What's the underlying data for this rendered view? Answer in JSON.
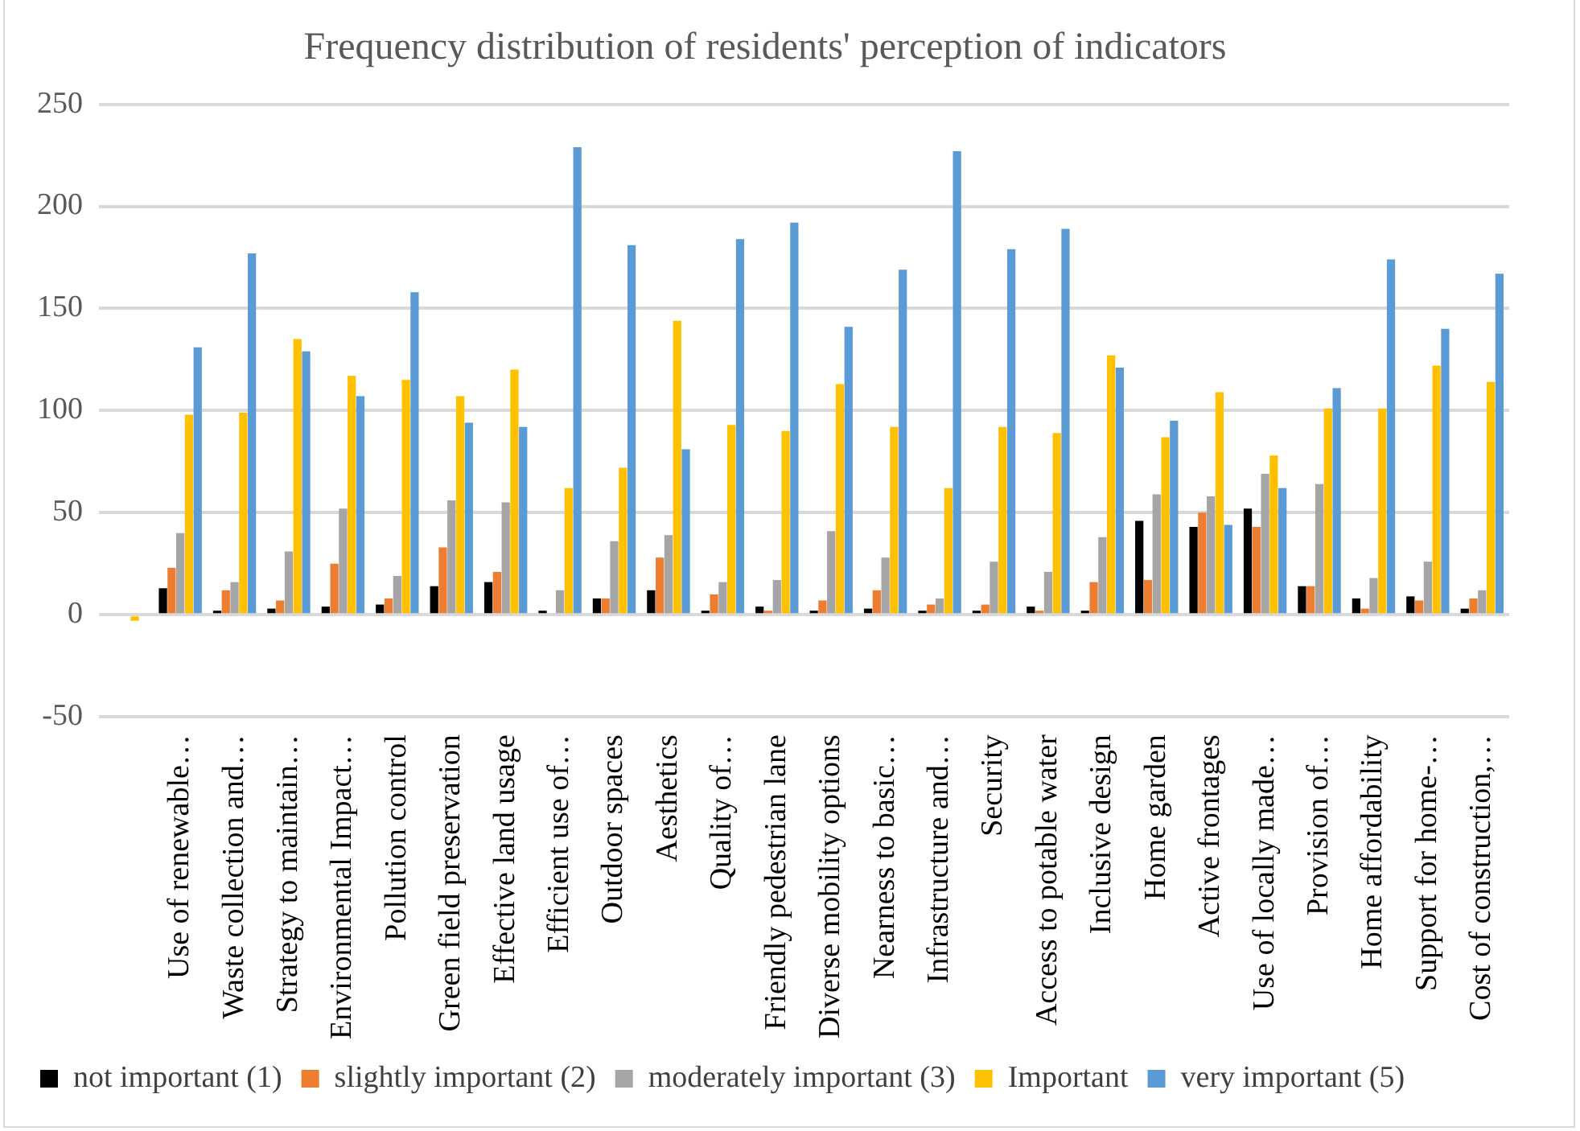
{
  "chart_data": {
    "type": "bar",
    "title": "Frequency distribution of residents' perception of indicators",
    "categories": [
      null,
      "Use of renewable…",
      "Waste collection and…",
      "Strategy to maintain…",
      "Environmental Impact…",
      "Pollution control",
      "Green field preservation",
      "Effective land usage",
      "Efficient use of…",
      "Outdoor spaces",
      "Aesthetics",
      "Quality of…",
      "Friendly pedestrian lane",
      "Diverse mobility options",
      "Nearness to basic…",
      "Infrastructure and…",
      "Security",
      "Access to potable water",
      "Inclusive design",
      "Home garden",
      "Active frontages",
      "Use of locally made…",
      "Provision of…",
      "Home affordability",
      "Support for home-…",
      "Cost of construction,…"
    ],
    "series": [
      {
        "name": "not important (1)",
        "color": "#000000",
        "values": [
          null,
          13,
          2,
          3,
          4,
          5,
          14,
          16,
          2,
          8,
          12,
          2,
          4,
          2,
          3,
          2,
          2,
          4,
          2,
          46,
          43,
          52,
          14,
          8,
          9,
          3
        ]
      },
      {
        "name": "slightly important (2)",
        "color": "#ed7d31",
        "values": [
          null,
          23,
          12,
          7,
          25,
          8,
          33,
          21,
          0,
          8,
          28,
          10,
          2,
          7,
          12,
          5,
          5,
          2,
          16,
          17,
          50,
          43,
          14,
          3,
          7,
          8
        ]
      },
      {
        "name": "moderately important (3)",
        "color": "#a5a5a5",
        "values": [
          null,
          40,
          16,
          31,
          52,
          19,
          56,
          55,
          12,
          36,
          39,
          16,
          17,
          41,
          28,
          8,
          26,
          21,
          38,
          59,
          58,
          69,
          64,
          18,
          26,
          12
        ]
      },
      {
        "name": "Important",
        "color": "#ffc000",
        "values": [
          -3,
          98,
          99,
          135,
          117,
          115,
          107,
          120,
          62,
          72,
          144,
          93,
          90,
          113,
          92,
          62,
          92,
          89,
          127,
          87,
          109,
          78,
          101,
          101,
          122,
          114
        ]
      },
      {
        "name": "very important (5)",
        "color": "#5b9bd5",
        "values": [
          null,
          131,
          177,
          129,
          107,
          158,
          94,
          92,
          229,
          181,
          81,
          184,
          192,
          141,
          169,
          227,
          179,
          189,
          121,
          95,
          44,
          62,
          111,
          174,
          140,
          167
        ]
      }
    ],
    "ylim": [
      -50,
      250
    ],
    "yticks": [
      -50,
      0,
      50,
      100,
      150,
      200,
      250
    ],
    "grid": "y",
    "legend": "bottom"
  }
}
